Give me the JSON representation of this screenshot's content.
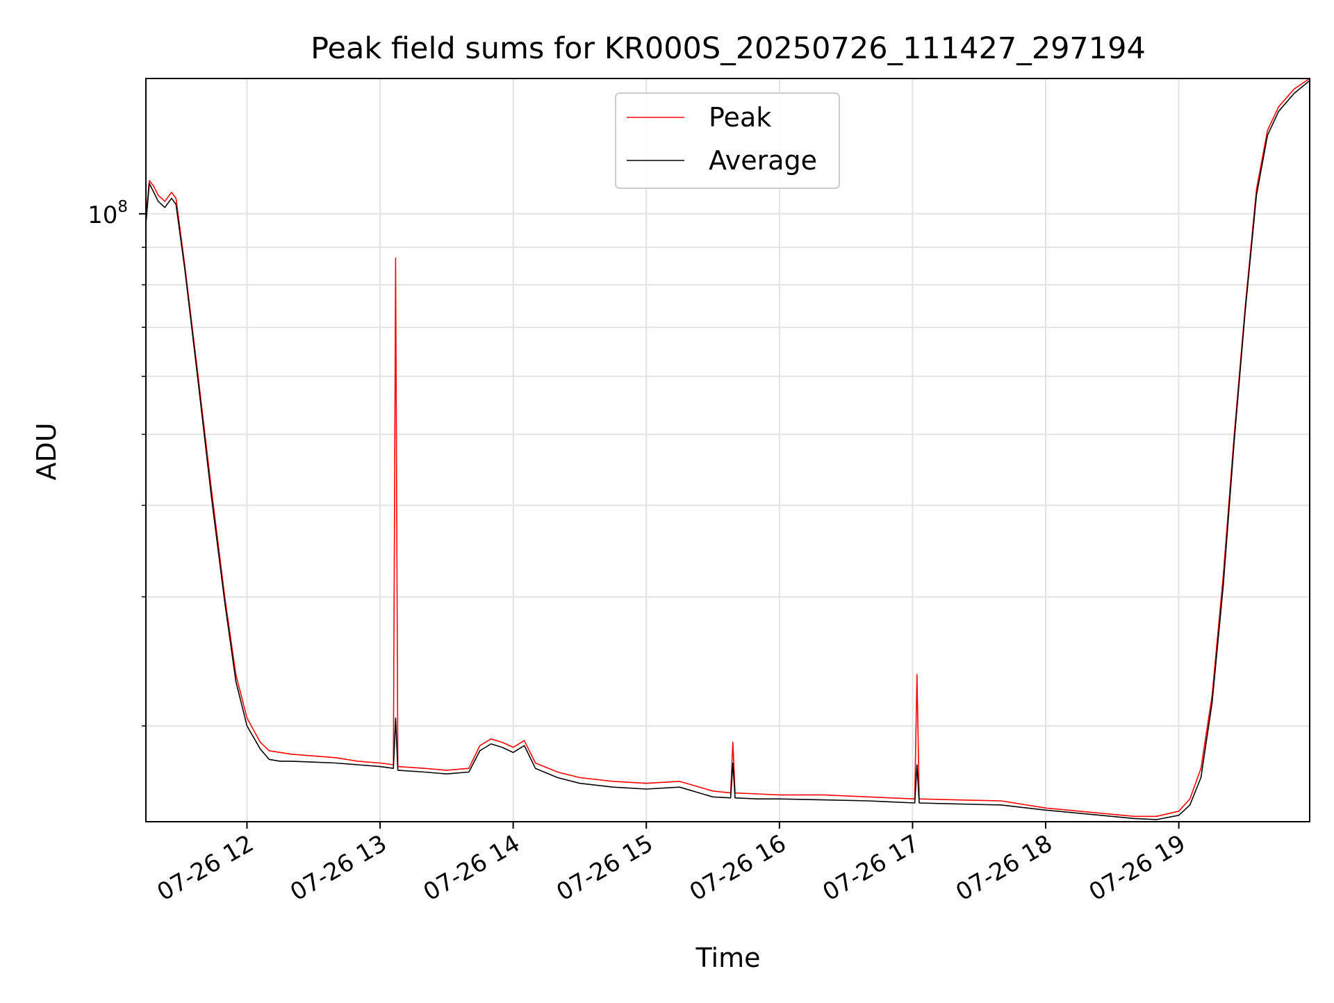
{
  "chart_data": {
    "type": "line",
    "title": "Peak field sums for KR000S_20250726_111427_297194",
    "xlabel": "Time",
    "ylabel": "ADU",
    "y_scale": "log",
    "grid": true,
    "legend_position": "upper center",
    "x_range": [
      "2025-07-26T11:14:27",
      "2025-07-26T19:59:00"
    ],
    "y_range": [
      14800000,
      153000000
    ],
    "x_ticks": [
      {
        "t": "2025-07-26T12:00",
        "label": "07-26 12"
      },
      {
        "t": "2025-07-26T13:00",
        "label": "07-26 13"
      },
      {
        "t": "2025-07-26T14:00",
        "label": "07-26 14"
      },
      {
        "t": "2025-07-26T15:00",
        "label": "07-26 15"
      },
      {
        "t": "2025-07-26T16:00",
        "label": "07-26 16"
      },
      {
        "t": "2025-07-26T17:00",
        "label": "07-26 17"
      },
      {
        "t": "2025-07-26T18:00",
        "label": "07-26 18"
      },
      {
        "t": "2025-07-26T19:00",
        "label": "07-26 19"
      }
    ],
    "y_major_ticks": [
      {
        "value": 100000000,
        "base": "10",
        "exp": "8"
      }
    ],
    "y_minor_ticks": [
      20000000,
      30000000,
      40000000,
      50000000,
      60000000,
      70000000,
      80000000,
      90000000
    ],
    "series": [
      {
        "name": "Peak",
        "color": "#ff0000",
        "points": [
          [
            "2025-07-26T11:14:27",
            99000000
          ],
          [
            "2025-07-26T11:16:00",
            111000000
          ],
          [
            "2025-07-26T11:18:00",
            109000000
          ],
          [
            "2025-07-26T11:20:00",
            106000000
          ],
          [
            "2025-07-26T11:23:00",
            104000000
          ],
          [
            "2025-07-26T11:26:00",
            107000000
          ],
          [
            "2025-07-26T11:28:00",
            105000000
          ],
          [
            "2025-07-26T11:32:00",
            85000000
          ],
          [
            "2025-07-26T11:38:00",
            60000000
          ],
          [
            "2025-07-26T11:44:00",
            42000000
          ],
          [
            "2025-07-26T11:50:00",
            30000000
          ],
          [
            "2025-07-26T11:55:00",
            23500000
          ],
          [
            "2025-07-26T12:00:00",
            20500000
          ],
          [
            "2025-07-26T12:06:00",
            19000000
          ],
          [
            "2025-07-26T12:10:00",
            18500000
          ],
          [
            "2025-07-26T12:15:00",
            18400000
          ],
          [
            "2025-07-26T12:20:00",
            18300000
          ],
          [
            "2025-07-26T12:30:00",
            18200000
          ],
          [
            "2025-07-26T12:40:00",
            18100000
          ],
          [
            "2025-07-26T12:50:00",
            17900000
          ],
          [
            "2025-07-26T13:00:00",
            17800000
          ],
          [
            "2025-07-26T13:06:00",
            17700000
          ],
          [
            "2025-07-26T13:07:00",
            87000000
          ],
          [
            "2025-07-26T13:08:00",
            17600000
          ],
          [
            "2025-07-26T13:20:00",
            17500000
          ],
          [
            "2025-07-26T13:30:00",
            17400000
          ],
          [
            "2025-07-26T13:40:00",
            17500000
          ],
          [
            "2025-07-26T13:45:00",
            18800000
          ],
          [
            "2025-07-26T13:50:00",
            19200000
          ],
          [
            "2025-07-26T13:55:00",
            19000000
          ],
          [
            "2025-07-26T14:00:00",
            18700000
          ],
          [
            "2025-07-26T14:05:00",
            19100000
          ],
          [
            "2025-07-26T14:10:00",
            17800000
          ],
          [
            "2025-07-26T14:20:00",
            17300000
          ],
          [
            "2025-07-26T14:30:00",
            17000000
          ],
          [
            "2025-07-26T14:45:00",
            16800000
          ],
          [
            "2025-07-26T15:00:00",
            16700000
          ],
          [
            "2025-07-26T15:15:00",
            16800000
          ],
          [
            "2025-07-26T15:30:00",
            16300000
          ],
          [
            "2025-07-26T15:38:00",
            16200000
          ],
          [
            "2025-07-26T15:39:00",
            19000000
          ],
          [
            "2025-07-26T15:40:00",
            16200000
          ],
          [
            "2025-07-26T15:50:00",
            16150000
          ],
          [
            "2025-07-26T16:00:00",
            16100000
          ],
          [
            "2025-07-26T16:20:00",
            16100000
          ],
          [
            "2025-07-26T16:40:00",
            16000000
          ],
          [
            "2025-07-26T17:01:00",
            15900000
          ],
          [
            "2025-07-26T17:02:00",
            23500000
          ],
          [
            "2025-07-26T17:03:00",
            15900000
          ],
          [
            "2025-07-26T17:20:00",
            15850000
          ],
          [
            "2025-07-26T17:40:00",
            15800000
          ],
          [
            "2025-07-26T18:00:00",
            15450000
          ],
          [
            "2025-07-26T18:20:00",
            15250000
          ],
          [
            "2025-07-26T18:40:00",
            15050000
          ],
          [
            "2025-07-26T18:50:00",
            15050000
          ],
          [
            "2025-07-26T19:00:00",
            15300000
          ],
          [
            "2025-07-26T19:05:00",
            15900000
          ],
          [
            "2025-07-26T19:10:00",
            17500000
          ],
          [
            "2025-07-26T19:15:00",
            22000000
          ],
          [
            "2025-07-26T19:20:00",
            32000000
          ],
          [
            "2025-07-26T19:25:00",
            50000000
          ],
          [
            "2025-07-26T19:30:00",
            75000000
          ],
          [
            "2025-07-26T19:35:00",
            108000000
          ],
          [
            "2025-07-26T19:40:00",
            130000000
          ],
          [
            "2025-07-26T19:45:00",
            140000000
          ],
          [
            "2025-07-26T19:52:00",
            148000000
          ],
          [
            "2025-07-26T19:59:00",
            153000000
          ]
        ]
      },
      {
        "name": "Average",
        "color": "#000000",
        "points": [
          [
            "2025-07-26T11:14:27",
            97000000
          ],
          [
            "2025-07-26T11:16:00",
            110000000
          ],
          [
            "2025-07-26T11:18:00",
            107000000
          ],
          [
            "2025-07-26T11:20:00",
            104000000
          ],
          [
            "2025-07-26T11:23:00",
            102000000
          ],
          [
            "2025-07-26T11:26:00",
            105000000
          ],
          [
            "2025-07-26T11:28:00",
            103000000
          ],
          [
            "2025-07-26T11:32:00",
            84000000
          ],
          [
            "2025-07-26T11:38:00",
            59000000
          ],
          [
            "2025-07-26T11:44:00",
            41000000
          ],
          [
            "2025-07-26T11:50:00",
            29500000
          ],
          [
            "2025-07-26T11:55:00",
            23000000
          ],
          [
            "2025-07-26T12:00:00",
            20000000
          ],
          [
            "2025-07-26T12:06:00",
            18600000
          ],
          [
            "2025-07-26T12:10:00",
            18000000
          ],
          [
            "2025-07-26T12:15:00",
            17900000
          ],
          [
            "2025-07-26T12:20:00",
            17900000
          ],
          [
            "2025-07-26T12:30:00",
            17850000
          ],
          [
            "2025-07-26T12:40:00",
            17800000
          ],
          [
            "2025-07-26T12:50:00",
            17700000
          ],
          [
            "2025-07-26T13:00:00",
            17600000
          ],
          [
            "2025-07-26T13:06:00",
            17500000
          ],
          [
            "2025-07-26T13:07:00",
            20500000
          ],
          [
            "2025-07-26T13:08:00",
            17400000
          ],
          [
            "2025-07-26T13:20:00",
            17300000
          ],
          [
            "2025-07-26T13:30:00",
            17200000
          ],
          [
            "2025-07-26T13:40:00",
            17300000
          ],
          [
            "2025-07-26T13:45:00",
            18500000
          ],
          [
            "2025-07-26T13:50:00",
            18900000
          ],
          [
            "2025-07-26T13:55:00",
            18700000
          ],
          [
            "2025-07-26T14:00:00",
            18400000
          ],
          [
            "2025-07-26T14:05:00",
            18800000
          ],
          [
            "2025-07-26T14:10:00",
            17500000
          ],
          [
            "2025-07-26T14:20:00",
            17000000
          ],
          [
            "2025-07-26T14:30:00",
            16700000
          ],
          [
            "2025-07-26T14:45:00",
            16500000
          ],
          [
            "2025-07-26T15:00:00",
            16400000
          ],
          [
            "2025-07-26T15:15:00",
            16500000
          ],
          [
            "2025-07-26T15:30:00",
            16000000
          ],
          [
            "2025-07-26T15:38:00",
            15950000
          ],
          [
            "2025-07-26T15:39:00",
            17800000
          ],
          [
            "2025-07-26T15:40:00",
            15950000
          ],
          [
            "2025-07-26T15:50:00",
            15900000
          ],
          [
            "2025-07-26T16:00:00",
            15900000
          ],
          [
            "2025-07-26T16:20:00",
            15850000
          ],
          [
            "2025-07-26T16:40:00",
            15800000
          ],
          [
            "2025-07-26T17:01:00",
            15700000
          ],
          [
            "2025-07-26T17:02:00",
            17700000
          ],
          [
            "2025-07-26T17:03:00",
            15700000
          ],
          [
            "2025-07-26T17:20:00",
            15650000
          ],
          [
            "2025-07-26T17:40:00",
            15600000
          ],
          [
            "2025-07-26T18:00:00",
            15350000
          ],
          [
            "2025-07-26T18:20:00",
            15150000
          ],
          [
            "2025-07-26T18:40:00",
            14950000
          ],
          [
            "2025-07-26T18:50:00",
            14900000
          ],
          [
            "2025-07-26T19:00:00",
            15100000
          ],
          [
            "2025-07-26T19:05:00",
            15600000
          ],
          [
            "2025-07-26T19:10:00",
            17000000
          ],
          [
            "2025-07-26T19:15:00",
            21500000
          ],
          [
            "2025-07-26T19:20:00",
            31000000
          ],
          [
            "2025-07-26T19:25:00",
            49000000
          ],
          [
            "2025-07-26T19:30:00",
            74000000
          ],
          [
            "2025-07-26T19:35:00",
            106000000
          ],
          [
            "2025-07-26T19:40:00",
            128000000
          ],
          [
            "2025-07-26T19:45:00",
            138000000
          ],
          [
            "2025-07-26T19:52:00",
            146000000
          ],
          [
            "2025-07-26T19:59:00",
            152000000
          ]
        ]
      }
    ]
  }
}
